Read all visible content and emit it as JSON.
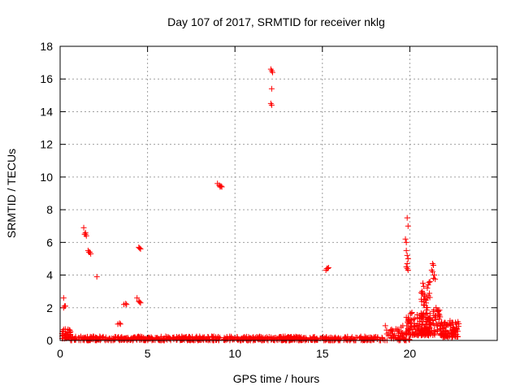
{
  "chart_data": {
    "type": "scatter",
    "title": "Day 107 of 2017, SRMTID for receiver nklg",
    "xlabel": "GPS time / hours",
    "ylabel": "SRMTID / TECUs",
    "xlim": [
      0,
      25
    ],
    "ylim": [
      0,
      18
    ],
    "xticks": [
      "0",
      "5",
      "10",
      "15",
      "20"
    ],
    "yticks": [
      "0",
      "2",
      "4",
      "6",
      "8",
      "10",
      "12",
      "14",
      "16",
      "18"
    ],
    "grid": true,
    "marker": "plus",
    "color": "#ff0000",
    "clusters": [
      {
        "x": [
          0.1,
          0.6
        ],
        "y": [
          0.1,
          0.7
        ],
        "n": 40
      },
      {
        "x": [
          0.6,
          18.5
        ],
        "y": [
          0.0,
          0.25
        ],
        "n": 700
      },
      {
        "x": [
          18.5,
          20.0
        ],
        "y": [
          0.0,
          0.7
        ],
        "n": 60
      },
      {
        "x": [
          19.8,
          21.0
        ],
        "y": [
          0.3,
          1.8
        ],
        "n": 90
      },
      {
        "x": [
          20.6,
          21.2
        ],
        "y": [
          0.4,
          3.0
        ],
        "n": 70
      },
      {
        "x": [
          21.0,
          21.8
        ],
        "y": [
          0.3,
          2.2
        ],
        "n": 60
      },
      {
        "x": [
          21.8,
          22.8
        ],
        "y": [
          0.2,
          1.2
        ],
        "n": 90
      }
    ],
    "points": [
      [
        0.2,
        2.0
      ],
      [
        0.25,
        2.1
      ],
      [
        0.3,
        2.1
      ],
      [
        0.2,
        2.6
      ],
      [
        1.35,
        6.9
      ],
      [
        1.4,
        6.5
      ],
      [
        1.45,
        6.6
      ],
      [
        1.5,
        6.4
      ],
      [
        1.45,
        6.5
      ],
      [
        1.6,
        5.5
      ],
      [
        1.65,
        5.4
      ],
      [
        1.7,
        5.4
      ],
      [
        1.75,
        5.3
      ],
      [
        2.1,
        3.9
      ],
      [
        3.3,
        1.0
      ],
      [
        3.4,
        1.05
      ],
      [
        3.45,
        1.0
      ],
      [
        3.65,
        2.2
      ],
      [
        3.75,
        2.25
      ],
      [
        3.8,
        2.2
      ],
      [
        4.4,
        2.6
      ],
      [
        4.5,
        2.4
      ],
      [
        4.55,
        2.35
      ],
      [
        4.6,
        2.3
      ],
      [
        4.5,
        5.7
      ],
      [
        4.55,
        5.65
      ],
      [
        4.6,
        5.6
      ],
      [
        9.0,
        9.6
      ],
      [
        9.1,
        9.5
      ],
      [
        9.15,
        9.4
      ],
      [
        9.2,
        9.45
      ],
      [
        9.25,
        9.4
      ],
      [
        12.05,
        16.6
      ],
      [
        12.1,
        16.5
      ],
      [
        12.15,
        16.4
      ],
      [
        12.1,
        15.4
      ],
      [
        12.05,
        14.5
      ],
      [
        12.1,
        14.4
      ],
      [
        15.2,
        4.3
      ],
      [
        15.25,
        4.4
      ],
      [
        15.3,
        4.4
      ],
      [
        15.35,
        4.45
      ],
      [
        18.6,
        0.9
      ],
      [
        19.2,
        0.7
      ],
      [
        19.5,
        0.8
      ],
      [
        19.6,
        0.9
      ],
      [
        19.85,
        7.5
      ],
      [
        19.9,
        7.0
      ],
      [
        19.8,
        6.0
      ],
      [
        19.75,
        6.2
      ],
      [
        19.8,
        5.5
      ],
      [
        19.85,
        5.2
      ],
      [
        19.9,
        5.0
      ],
      [
        19.85,
        4.7
      ],
      [
        19.8,
        4.5
      ],
      [
        19.85,
        4.4
      ],
      [
        19.9,
        4.3
      ],
      [
        20.7,
        3.0
      ],
      [
        20.75,
        3.5
      ],
      [
        20.8,
        3.3
      ],
      [
        20.85,
        2.8
      ],
      [
        20.9,
        2.5
      ],
      [
        20.95,
        2.0
      ],
      [
        21.05,
        3.4
      ],
      [
        21.1,
        3.55
      ],
      [
        21.15,
        3.6
      ],
      [
        21.0,
        3.2
      ],
      [
        21.3,
        4.7
      ],
      [
        21.35,
        4.6
      ],
      [
        21.25,
        4.3
      ],
      [
        21.3,
        4.2
      ],
      [
        21.4,
        4.0
      ],
      [
        21.35,
        3.8
      ],
      [
        21.45,
        3.75
      ],
      [
        21.5,
        2.0
      ],
      [
        21.6,
        1.5
      ],
      [
        22.0,
        1.1
      ],
      [
        22.1,
        0.95
      ],
      [
        22.3,
        1.2
      ],
      [
        22.5,
        0.8
      ],
      [
        22.6,
        0.6
      ]
    ]
  }
}
